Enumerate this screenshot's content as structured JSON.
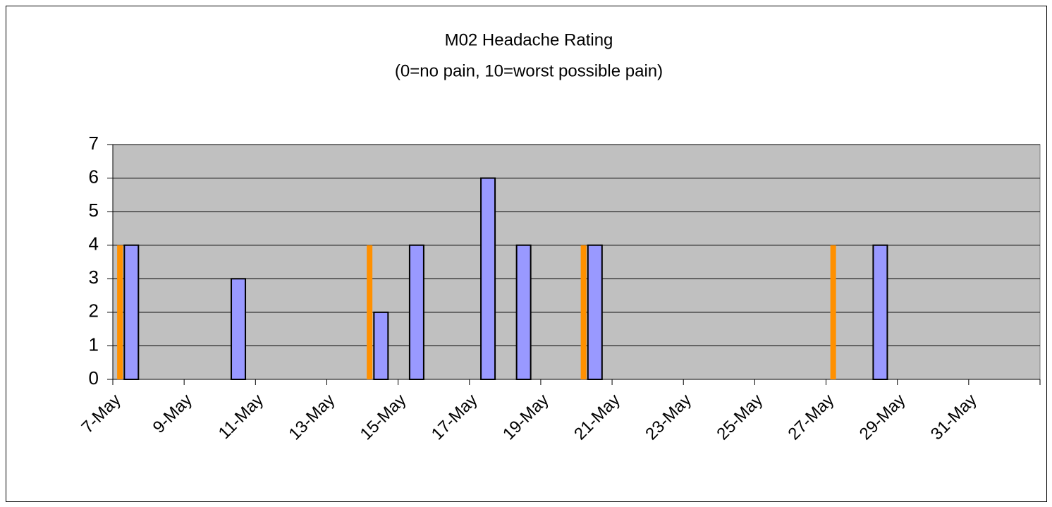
{
  "chart_data": {
    "type": "bar",
    "title": "M02 Headache Rating",
    "subtitle": "(0=no pain, 10=worst possible pain)",
    "categories": [
      "7-May",
      null,
      "9-May",
      null,
      "11-May",
      null,
      "13-May",
      null,
      "15-May",
      null,
      "17-May",
      null,
      "19-May",
      null,
      "21-May",
      null,
      "23-May",
      null,
      "25-May",
      null,
      "27-May",
      null,
      "29-May",
      null,
      "31-May",
      null
    ],
    "series": [
      {
        "color": "#ff9000",
        "values": [
          4,
          null,
          null,
          null,
          null,
          null,
          null,
          4,
          null,
          null,
          null,
          null,
          null,
          4,
          null,
          null,
          null,
          null,
          null,
          null,
          4,
          null,
          null,
          null,
          null,
          null
        ]
      },
      {
        "color": "#9999ff",
        "values": [
          4,
          null,
          null,
          3,
          null,
          null,
          null,
          2,
          4,
          null,
          6,
          4,
          null,
          4,
          null,
          null,
          null,
          null,
          null,
          null,
          null,
          4,
          null,
          null,
          null,
          null
        ]
      }
    ],
    "ylim": [
      0,
      7
    ],
    "yticks": [
      0,
      1,
      2,
      3,
      4,
      5,
      6,
      7
    ],
    "grid": true
  }
}
